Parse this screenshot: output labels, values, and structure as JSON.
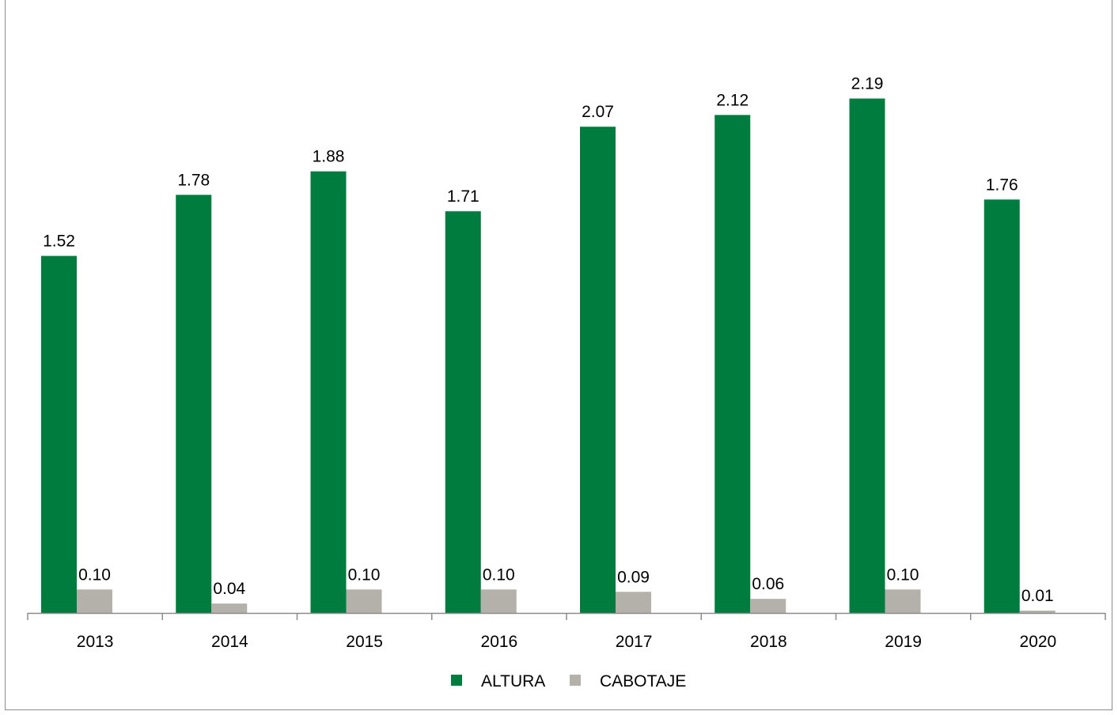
{
  "chart_data": {
    "type": "bar",
    "title": "",
    "xlabel": "",
    "ylabel": "",
    "categories": [
      "2013",
      "2014",
      "2015",
      "2016",
      "2017",
      "2018",
      "2019",
      "2020"
    ],
    "series": [
      {
        "name": "ALTURA",
        "color": "#007d3e",
        "values": [
          1.52,
          1.78,
          1.88,
          1.71,
          2.07,
          2.12,
          2.19,
          1.76
        ],
        "labels": [
          "1.52",
          "1.78",
          "1.88",
          "1.71",
          "2.07",
          "2.12",
          "2.19",
          "1.76"
        ]
      },
      {
        "name": "CABOTAJE",
        "color": "#b4b0aa",
        "values": [
          0.1,
          0.04,
          0.1,
          0.1,
          0.09,
          0.06,
          0.1,
          0.01
        ],
        "labels": [
          "0.10",
          "0.04",
          "0.10",
          "0.10",
          "0.09",
          "0.06",
          "0.10",
          "0.01"
        ]
      }
    ],
    "ylim": [
      0,
      2.25
    ],
    "grid": false,
    "legend": "bottom-center",
    "axis_color": "#8c8c8c"
  }
}
